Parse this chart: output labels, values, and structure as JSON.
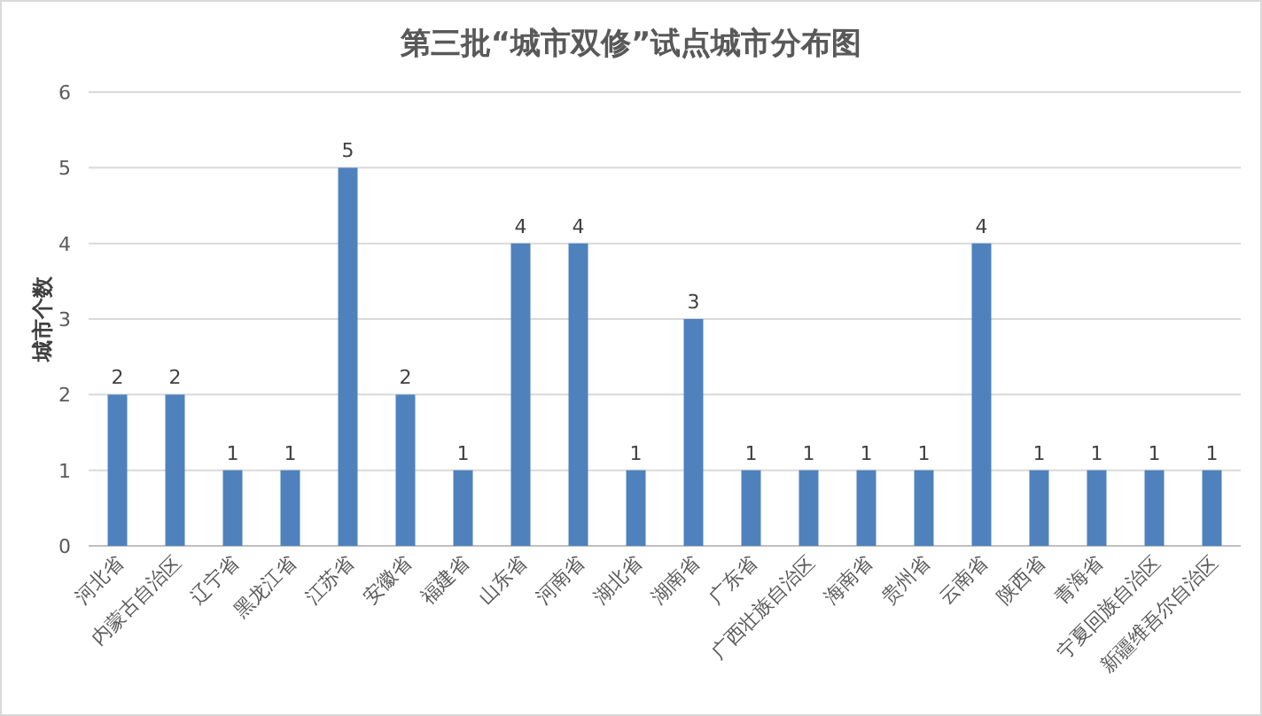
{
  "chart_data": {
    "type": "bar",
    "title": "第三批“城市双修”试点城市分布图",
    "ylabel": "城市个数",
    "categories": [
      "河北省",
      "内蒙古自治区",
      "辽宁省",
      "黑龙江省",
      "江苏省",
      "安徽省",
      "福建省",
      "山东省",
      "河南省",
      "湖北省",
      "湖南省",
      "广东省",
      "广西壮族自治区",
      "海南省",
      "贵州省",
      "云南省",
      "陕西省",
      "青海省",
      "宁夏回族自治区",
      "新疆维吾尔自治区"
    ],
    "values": [
      2,
      2,
      1,
      1,
      5,
      2,
      1,
      4,
      4,
      1,
      3,
      1,
      1,
      1,
      1,
      4,
      1,
      1,
      1,
      1
    ],
    "color": "#4f81bd",
    "ylim": [
      0,
      6
    ],
    "yticks": [
      0,
      1,
      2,
      3,
      4,
      5,
      6
    ],
    "grid": "y",
    "data_labels": true
  }
}
